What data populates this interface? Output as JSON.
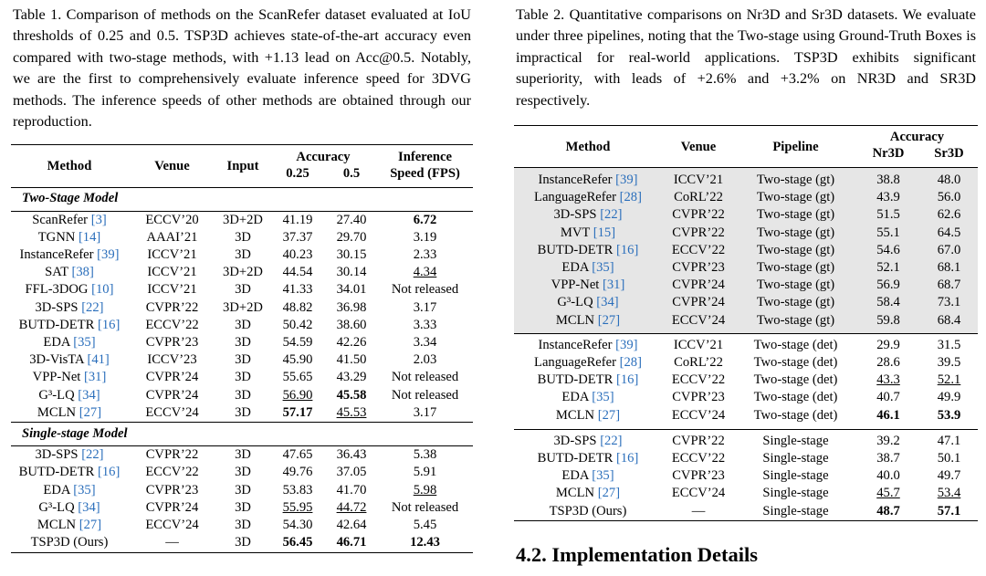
{
  "table1": {
    "caption": "Table 1. Comparison of methods on the ScanRefer dataset evaluated at IoU thresholds of 0.25 and 0.5. TSP3D achieves state-of-the-art accuracy even compared with two-stage methods, with +1.13 lead on Acc@0.5. Notably, we are the first to comprehensively evaluate inference speed for 3DVG methods. The inference speeds of other methods are obtained through our reproduction.",
    "headers": {
      "method": "Method",
      "venue": "Venue",
      "input": "Input",
      "accuracy": "Accuracy",
      "acc_025": "0.25",
      "acc_05": "0.5",
      "speed_line1": "Inference",
      "speed_line2": "Speed (FPS)"
    },
    "section_two_stage": "Two-Stage Model",
    "section_single_stage": "Single-stage Model",
    "two_stage_rows": [
      {
        "name": "ScanRefer",
        "ref": "[3]",
        "venue": "ECCV’20",
        "input": "3D+2D",
        "a25": "41.19",
        "a5": "27.40",
        "fps": "6.72"
      },
      {
        "name": "TGNN",
        "ref": "[14]",
        "venue": "AAAI’21",
        "input": "3D",
        "a25": "37.37",
        "a5": "29.70",
        "fps": "3.19"
      },
      {
        "name": "InstanceRefer",
        "ref": "[39]",
        "venue": "ICCV’21",
        "input": "3D",
        "a25": "40.23",
        "a5": "30.15",
        "fps": "2.33"
      },
      {
        "name": "SAT",
        "ref": "[38]",
        "venue": "ICCV’21",
        "input": "3D+2D",
        "a25": "44.54",
        "a5": "30.14",
        "fps": "4.34"
      },
      {
        "name": "FFL-3DOG",
        "ref": "[10]",
        "venue": "ICCV’21",
        "input": "3D",
        "a25": "41.33",
        "a5": "34.01",
        "fps": "Not released"
      },
      {
        "name": "3D-SPS",
        "ref": "[22]",
        "venue": "CVPR’22",
        "input": "3D+2D",
        "a25": "48.82",
        "a5": "36.98",
        "fps": "3.17"
      },
      {
        "name": "BUTD-DETR",
        "ref": "[16]",
        "venue": "ECCV’22",
        "input": "3D",
        "a25": "50.42",
        "a5": "38.60",
        "fps": "3.33"
      },
      {
        "name": "EDA",
        "ref": "[35]",
        "venue": "CVPR’23",
        "input": "3D",
        "a25": "54.59",
        "a5": "42.26",
        "fps": "3.34"
      },
      {
        "name": "3D-VisTA",
        "ref": "[41]",
        "venue": "ICCV’23",
        "input": "3D",
        "a25": "45.90",
        "a5": "41.50",
        "fps": "2.03"
      },
      {
        "name": "VPP-Net",
        "ref": "[31]",
        "venue": "CVPR’24",
        "input": "3D",
        "a25": "55.65",
        "a5": "43.29",
        "fps": "Not released"
      },
      {
        "name": "G³-LQ",
        "ref": "[34]",
        "venue": "CVPR’24",
        "input": "3D",
        "a25": "56.90",
        "a5": "45.58",
        "fps": "Not released"
      },
      {
        "name": "MCLN",
        "ref": "[27]",
        "venue": "ECCV’24",
        "input": "3D",
        "a25": "57.17",
        "a5": "45.53",
        "fps": "3.17"
      }
    ],
    "single_stage_rows": [
      {
        "name": "3D-SPS",
        "ref": "[22]",
        "venue": "CVPR’22",
        "input": "3D",
        "a25": "47.65",
        "a5": "36.43",
        "fps": "5.38"
      },
      {
        "name": "BUTD-DETR",
        "ref": "[16]",
        "venue": "ECCV’22",
        "input": "3D",
        "a25": "49.76",
        "a5": "37.05",
        "fps": "5.91"
      },
      {
        "name": "EDA",
        "ref": "[35]",
        "venue": "CVPR’23",
        "input": "3D",
        "a25": "53.83",
        "a5": "41.70",
        "fps": "5.98"
      },
      {
        "name": "G³-LQ",
        "ref": "[34]",
        "venue": "CVPR’24",
        "input": "3D",
        "a25": "55.95",
        "a5": "44.72",
        "fps": "Not released"
      },
      {
        "name": "MCLN",
        "ref": "[27]",
        "venue": "ECCV’24",
        "input": "3D",
        "a25": "54.30",
        "a5": "42.64",
        "fps": "5.45"
      },
      {
        "name": "TSP3D (Ours)",
        "ref": "",
        "venue": "—",
        "input": "3D",
        "a25": "56.45",
        "a5": "46.71",
        "fps": "12.43"
      }
    ]
  },
  "table2": {
    "caption": "Table 2. Quantitative comparisons on Nr3D and Sr3D datasets. We evaluate under three pipelines, noting that the Two-stage using Ground-Truth Boxes is impractical for real-world applications. TSP3D exhibits significant superiority, with leads of +2.6% and +3.2% on NR3D and SR3D respectively.",
    "headers": {
      "method": "Method",
      "venue": "Venue",
      "pipeline": "Pipeline",
      "accuracy": "Accuracy",
      "nr3d": "Nr3D",
      "sr3d": "Sr3D"
    },
    "gt_rows": [
      {
        "name": "InstanceRefer",
        "ref": "[39]",
        "venue": "ICCV’21",
        "pipeline": "Two-stage (gt)",
        "nr": "38.8",
        "sr": "48.0"
      },
      {
        "name": "LanguageRefer",
        "ref": "[28]",
        "venue": "CoRL’22",
        "pipeline": "Two-stage (gt)",
        "nr": "43.9",
        "sr": "56.0"
      },
      {
        "name": "3D-SPS",
        "ref": "[22]",
        "venue": "CVPR’22",
        "pipeline": "Two-stage (gt)",
        "nr": "51.5",
        "sr": "62.6"
      },
      {
        "name": "MVT",
        "ref": "[15]",
        "venue": "CVPR’22",
        "pipeline": "Two-stage (gt)",
        "nr": "55.1",
        "sr": "64.5"
      },
      {
        "name": "BUTD-DETR",
        "ref": "[16]",
        "venue": "ECCV’22",
        "pipeline": "Two-stage (gt)",
        "nr": "54.6",
        "sr": "67.0"
      },
      {
        "name": "EDA",
        "ref": "[35]",
        "venue": "CVPR’23",
        "pipeline": "Two-stage (gt)",
        "nr": "52.1",
        "sr": "68.1"
      },
      {
        "name": "VPP-Net",
        "ref": "[31]",
        "venue": "CVPR’24",
        "pipeline": "Two-stage (gt)",
        "nr": "56.9",
        "sr": "68.7"
      },
      {
        "name": "G³-LQ",
        "ref": "[34]",
        "venue": "CVPR’24",
        "pipeline": "Two-stage (gt)",
        "nr": "58.4",
        "sr": "73.1"
      },
      {
        "name": "MCLN",
        "ref": "[27]",
        "venue": "ECCV’24",
        "pipeline": "Two-stage (gt)",
        "nr": "59.8",
        "sr": "68.4"
      }
    ],
    "det_rows": [
      {
        "name": "InstanceRefer",
        "ref": "[39]",
        "venue": "ICCV’21",
        "pipeline": "Two-stage (det)",
        "nr": "29.9",
        "sr": "31.5"
      },
      {
        "name": "LanguageRefer",
        "ref": "[28]",
        "venue": "CoRL’22",
        "pipeline": "Two-stage (det)",
        "nr": "28.6",
        "sr": "39.5"
      },
      {
        "name": "BUTD-DETR",
        "ref": "[16]",
        "venue": "ECCV’22",
        "pipeline": "Two-stage (det)",
        "nr": "43.3",
        "sr": "52.1"
      },
      {
        "name": "EDA",
        "ref": "[35]",
        "venue": "CVPR’23",
        "pipeline": "Two-stage (det)",
        "nr": "40.7",
        "sr": "49.9"
      },
      {
        "name": "MCLN",
        "ref": "[27]",
        "venue": "ECCV’24",
        "pipeline": "Two-stage (det)",
        "nr": "46.1",
        "sr": "53.9"
      }
    ],
    "single_rows": [
      {
        "name": "3D-SPS",
        "ref": "[22]",
        "venue": "CVPR’22",
        "pipeline": "Single-stage",
        "nr": "39.2",
        "sr": "47.1"
      },
      {
        "name": "BUTD-DETR",
        "ref": "[16]",
        "venue": "ECCV’22",
        "pipeline": "Single-stage",
        "nr": "38.7",
        "sr": "50.1"
      },
      {
        "name": "EDA",
        "ref": "[35]",
        "venue": "CVPR’23",
        "pipeline": "Single-stage",
        "nr": "40.0",
        "sr": "49.7"
      },
      {
        "name": "MCLN",
        "ref": "[27]",
        "venue": "ECCV’24",
        "pipeline": "Single-stage",
        "nr": "45.7",
        "sr": "53.4"
      },
      {
        "name": "TSP3D (Ours)",
        "ref": "",
        "venue": "—",
        "pipeline": "Single-stage",
        "nr": "48.7",
        "sr": "57.1"
      }
    ]
  },
  "section_heading": "4.2. Implementation Details"
}
